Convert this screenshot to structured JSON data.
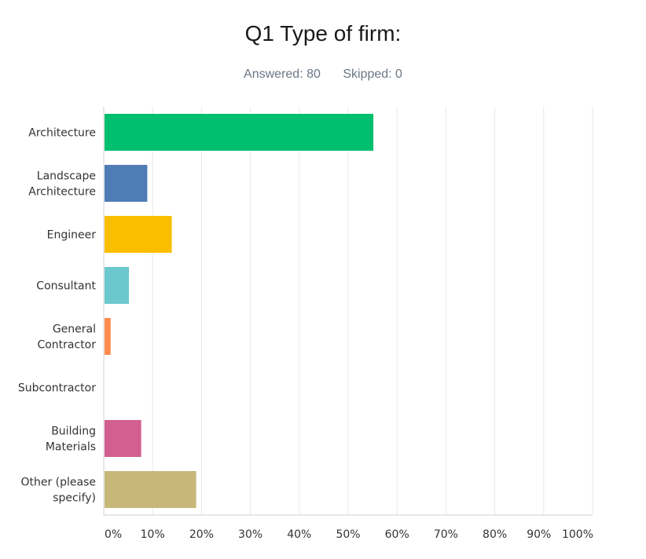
{
  "header": {
    "title": "Q1 Type of firm:",
    "answered": "Answered: 80",
    "skipped": "Skipped: 0"
  },
  "chart_data": {
    "type": "bar",
    "orientation": "horizontal",
    "categories": [
      [
        "Architecture"
      ],
      [
        "Landscape",
        "Architecture"
      ],
      [
        "Engineer"
      ],
      [
        "Consultant"
      ],
      [
        "General",
        "Contractor"
      ],
      [
        "Subcontractor"
      ],
      [
        "Building",
        "Materials"
      ],
      [
        "Other (please",
        "specify)"
      ]
    ],
    "values": [
      55,
      8.75,
      13.75,
      5,
      1.25,
      0,
      7.5,
      18.75
    ],
    "colors": [
      "#00bf6f",
      "#507cb6",
      "#f9be00",
      "#6bc8cd",
      "#ff8b4f",
      "#7d5ba6",
      "#d25f90",
      "#c7b879"
    ],
    "xlim": [
      0,
      100
    ],
    "xticks": [
      "0%",
      "10%",
      "20%",
      "30%",
      "40%",
      "50%",
      "60%",
      "70%",
      "80%",
      "90%",
      "100%"
    ],
    "grid": true
  }
}
